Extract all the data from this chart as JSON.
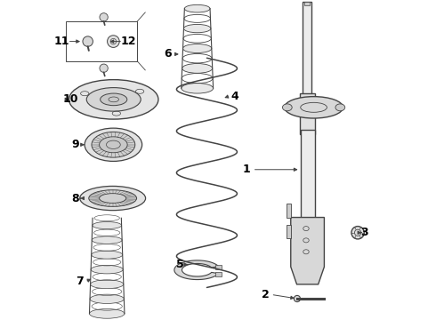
{
  "background_color": "#ffffff",
  "line_color": "#444444",
  "label_color": "#000000",
  "label_fontsize": 9,
  "fig_width": 4.9,
  "fig_height": 3.6,
  "dpi": 100
}
